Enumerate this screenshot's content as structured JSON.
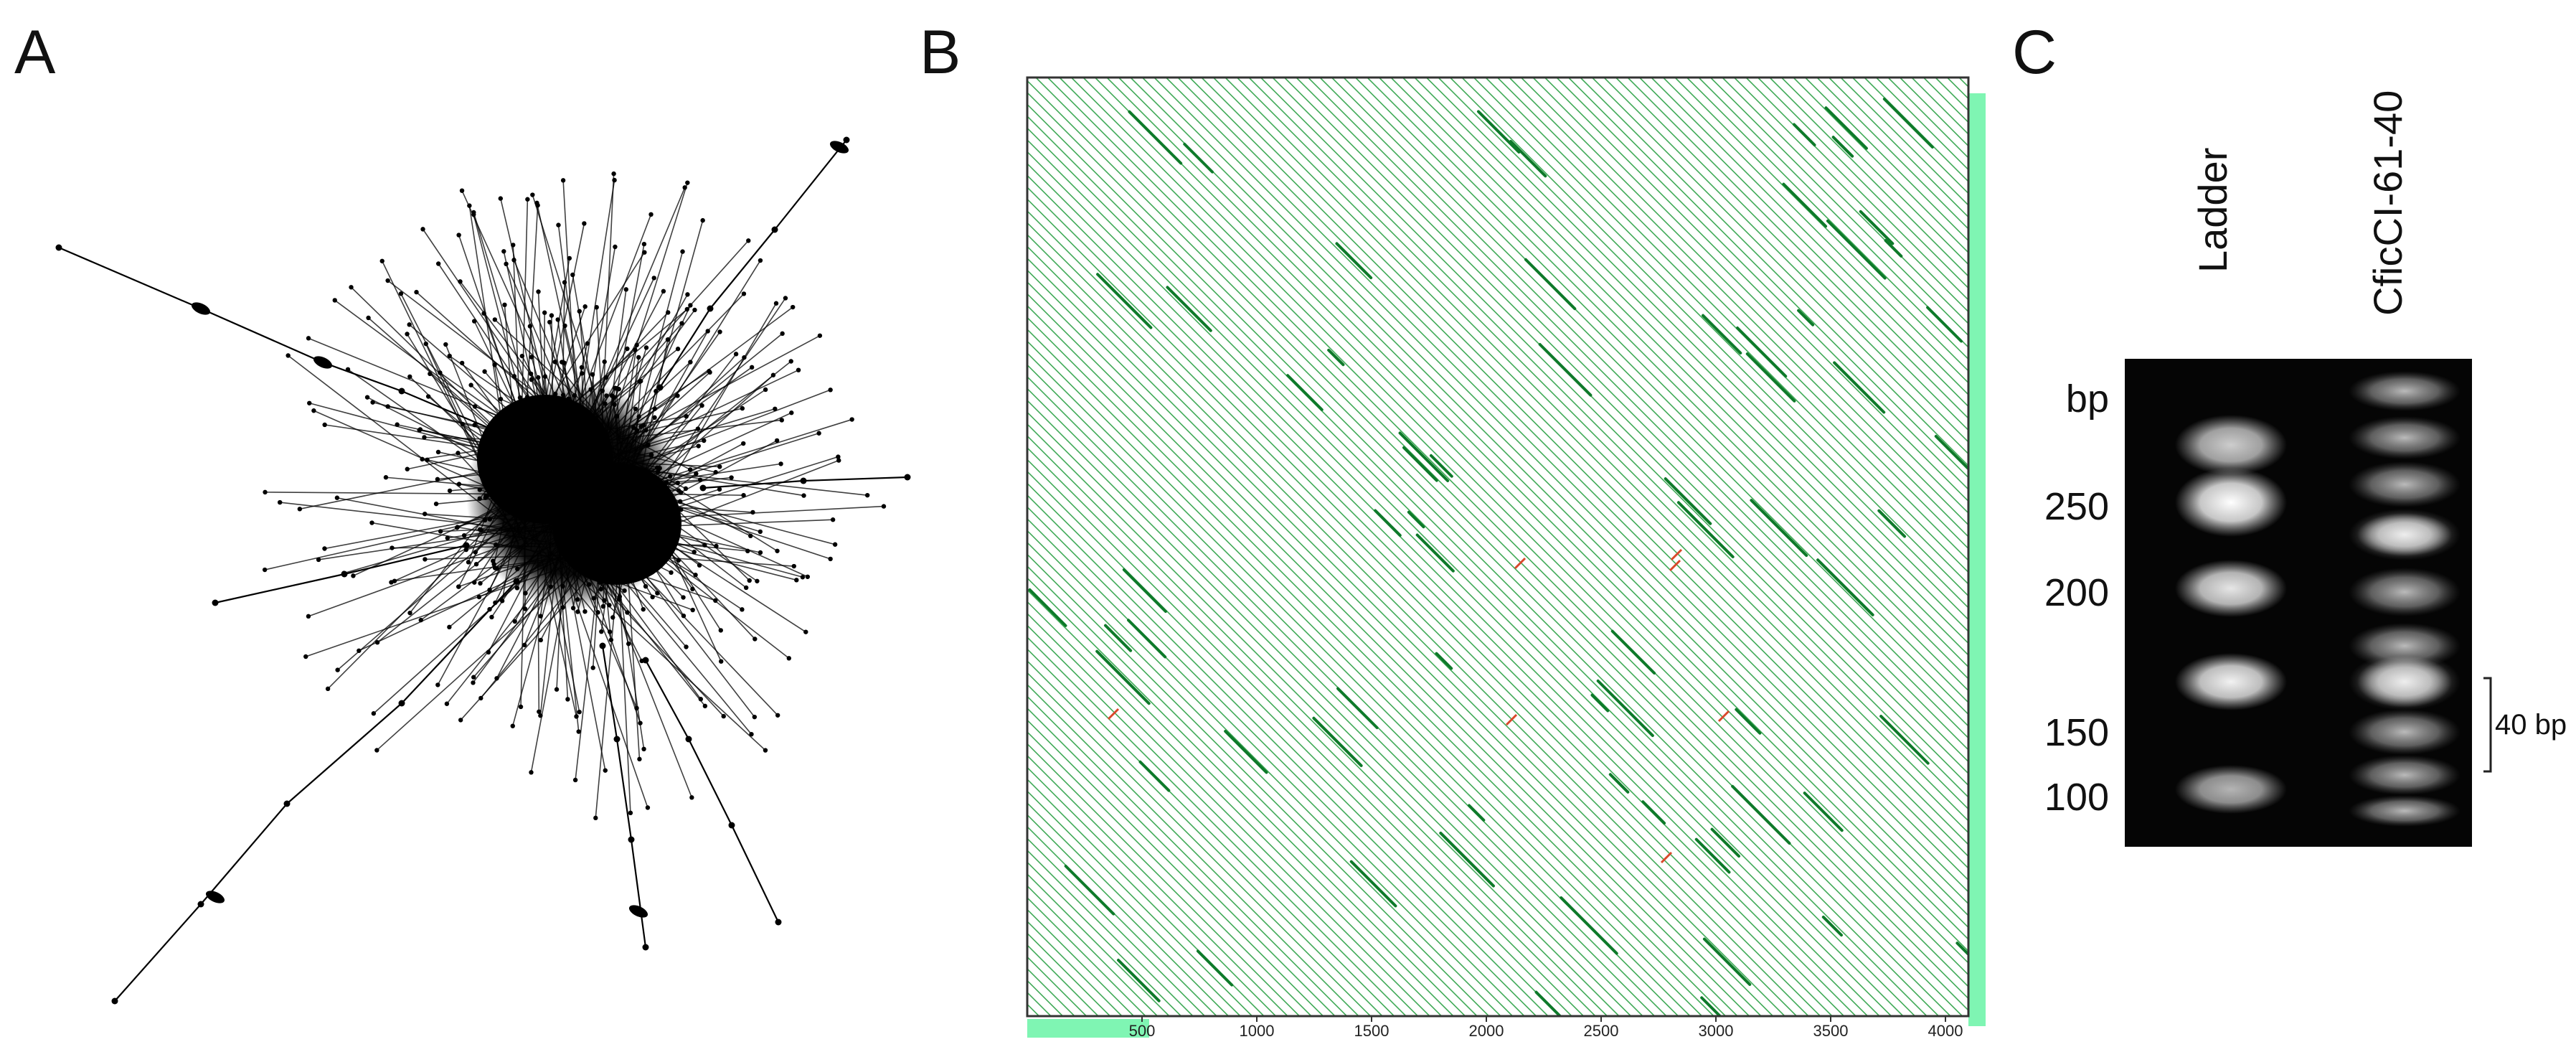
{
  "panels": {
    "a": {
      "letter": "A"
    },
    "b": {
      "letter": "B",
      "x_ticks": [
        "500",
        "1000",
        "1500",
        "2000",
        "2500",
        "3000",
        "3500",
        "4000"
      ]
    },
    "c": {
      "letter": "C",
      "lanes": [
        "Ladder",
        "CficCI-61-40"
      ],
      "unit": "bp",
      "ladder_marks": [
        "250",
        "200",
        "150",
        "100"
      ],
      "bracket_label": "40 bp"
    }
  },
  "colors": {
    "dotplot_green": "#1e9b3a",
    "dotplot_red": "#d9482b",
    "coverage_bar": "#7ff5b3",
    "gel_background": "#050505"
  }
}
